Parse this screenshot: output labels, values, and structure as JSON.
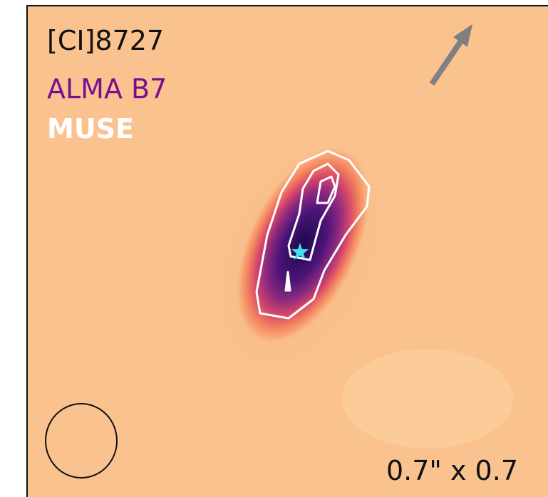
{
  "labels": {
    "line": "[CI]8727",
    "alma": "ALMA B7",
    "muse": "MUSE"
  },
  "scale": "0.7\" x 0.7"
}
